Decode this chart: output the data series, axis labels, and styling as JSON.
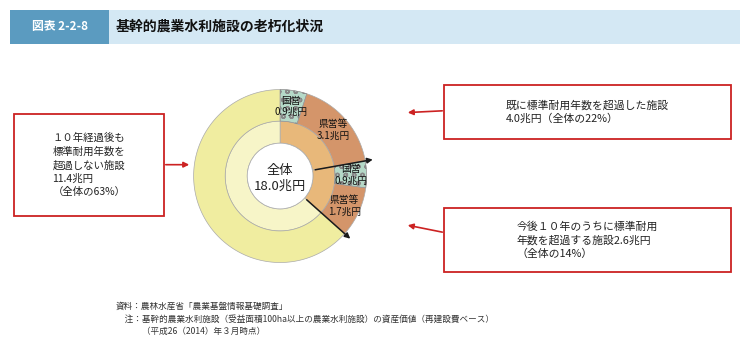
{
  "title_label": "図表 2-2-8",
  "title_text": "基幹的農業水利施設の老朽化状況",
  "center_line1": "全体",
  "center_line2": "18.0兆円",
  "outer_segments": [
    {
      "label": "国営\n0.9兆円",
      "value": 5.0,
      "color": "#b5d9c8",
      "hatch": "oo"
    },
    {
      "label": "県営等\n3.1兆円",
      "value": 17.2,
      "color": "#d4956a",
      "hatch": ""
    },
    {
      "label": "国営\n0.9兆円",
      "value": 5.0,
      "color": "#b5d9c8",
      "hatch": "oo"
    },
    {
      "label": "県営等\n1.7兆円",
      "value": 9.4,
      "color": "#d4956a",
      "hatch": ""
    },
    {
      "label": "",
      "value": 63.4,
      "color": "#f0eda0",
      "hatch": ""
    }
  ],
  "inner_segments": [
    {
      "value": 22.2,
      "color": "#e8b87a"
    },
    {
      "value": 14.4,
      "color": "#e8b87a"
    },
    {
      "value": 63.4,
      "color": "#f7f5c8"
    }
  ],
  "ann_top_right": "既に標準耐用年数を超過した施設\n4.0兆円（全体の22%）",
  "ann_bot_right": "今後１０年のうちに標準耐用\n年数を超過する施設2.6兆円\n（全体の14%）",
  "ann_left": "１０年経過後も\n標準耐用年数を\n超過しない施設\n11.4兆円\n（全体の63%）",
  "source_text": "資料：農林水産省「農業基盤情報基礎調査」\n　注：基幹的農業水利施設（受益面積100ha以上の農業水利施設）の資産価値（再建設費ベース）\n　　　（平成26（2014）年３月時点）",
  "header_dark": "#5b9bc0",
  "header_light": "#d4e8f4",
  "bg": "#ffffff",
  "ann_border": "#cc2222",
  "ann_bg": "#ffffff",
  "arrow_color": "#cc2222",
  "chart_arrow_color": "#1a1a1a"
}
